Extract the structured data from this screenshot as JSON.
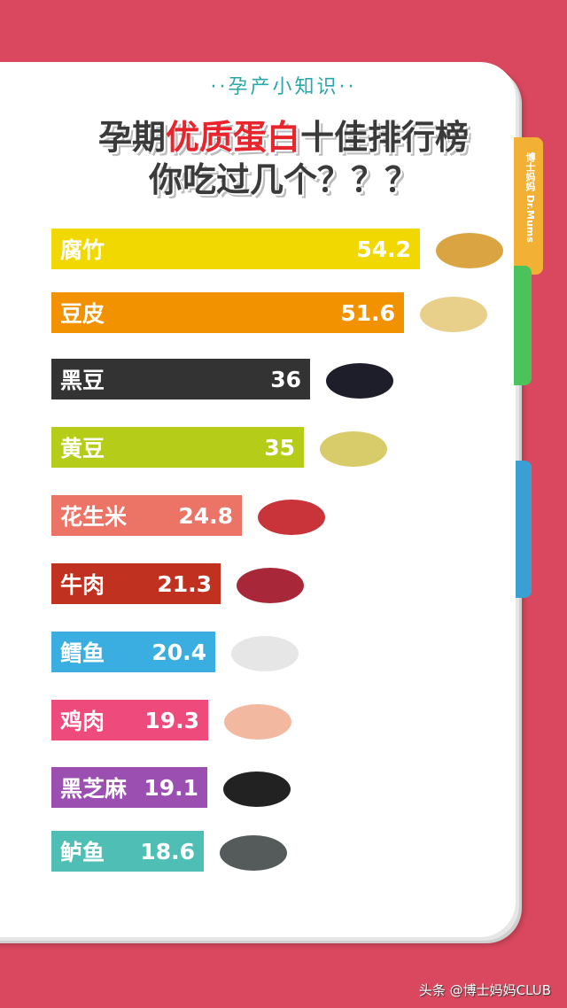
{
  "header": {
    "subtitle": "··孕产小知识··",
    "title_part1": "孕期",
    "title_highlight": "优质蛋白",
    "title_part2": "十佳排行榜",
    "title_line2": "你吃过几个？？？"
  },
  "brand": {
    "text": "博士妈妈 Dr.Mums"
  },
  "footer": {
    "text": "头条 @博士妈妈CLUB"
  },
  "chart_data": {
    "type": "bar",
    "orientation": "horizontal",
    "title": "孕期优质蛋白十佳排行榜",
    "categories": [
      "腐竹",
      "豆皮",
      "黑豆",
      "黄豆",
      "花生米",
      "牛肉",
      "鳕鱼",
      "鸡肉",
      "黑芝麻",
      "鲈鱼"
    ],
    "values": [
      54.2,
      51.6,
      36,
      35,
      24.8,
      21.3,
      20.4,
      19.3,
      19.1,
      18.6
    ],
    "labels": [
      "54.2",
      "51.6",
      "36",
      "35",
      "24.8",
      "21.3",
      "20.4",
      "19.3",
      "19.1",
      "18.6"
    ],
    "colors": [
      "#f0d800",
      "#f39200",
      "#333333",
      "#b5cc18",
      "#ec7466",
      "#c0321f",
      "#3aaee0",
      "#ee4a7c",
      "#9b4fb0",
      "#4fbfb6"
    ],
    "food_colors": [
      "#d9a441",
      "#e8cf8a",
      "#1e1e2a",
      "#d8cc6a",
      "#c8343a",
      "#a8283a",
      "#e6e6e6",
      "#f2b9a0",
      "#222222",
      "#555a5a"
    ],
    "grid": false
  }
}
